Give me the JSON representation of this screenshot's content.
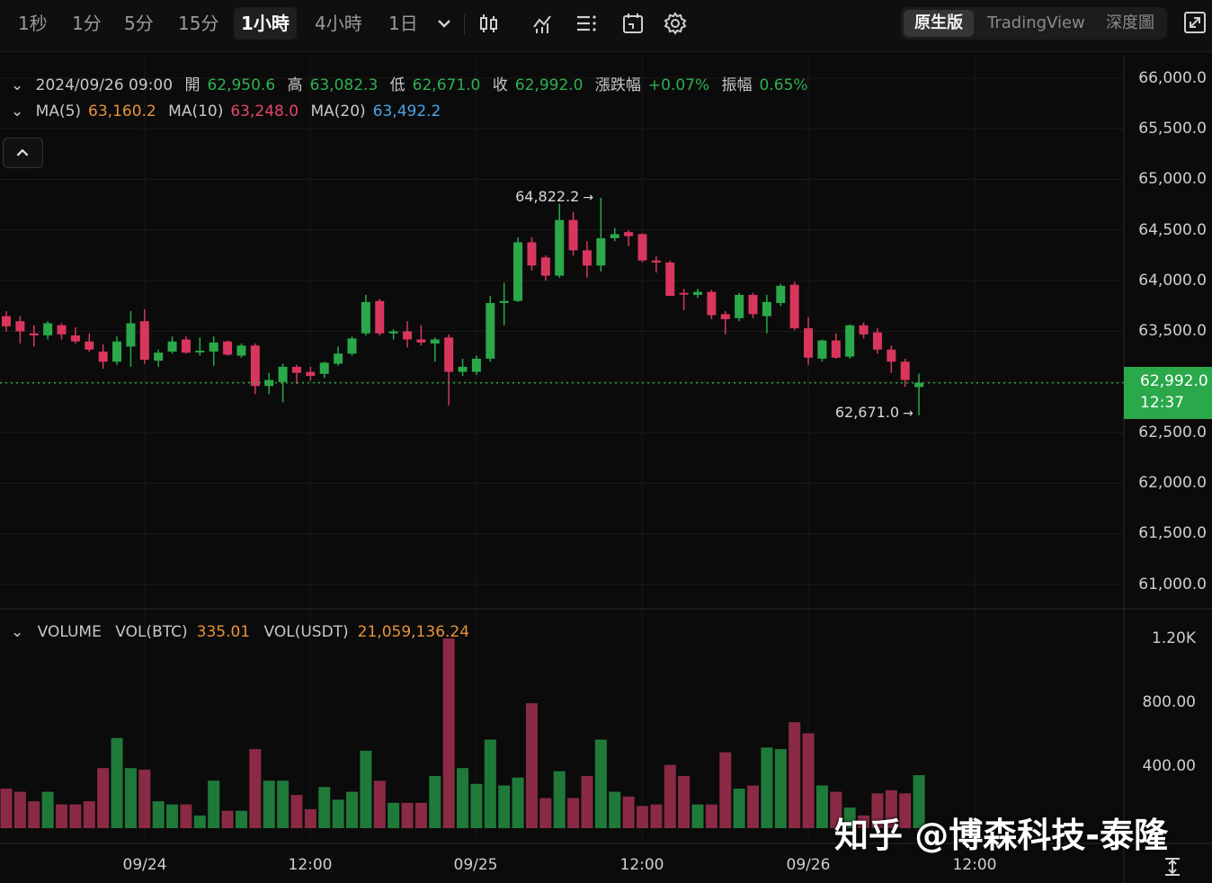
{
  "toolbar": {
    "timeframes": [
      "1秒",
      "1分",
      "5分",
      "15分",
      "1小時",
      "4小時",
      "1日"
    ],
    "active_timeframe": "1小時",
    "views": [
      "原生版",
      "TradingView",
      "深度圖"
    ],
    "active_view": "原生版"
  },
  "ohlc": {
    "datetime": "2024/09/26 09:00",
    "open_label": "開",
    "open": "62,950.6",
    "high_label": "高",
    "high": "63,082.3",
    "low_label": "低",
    "low": "62,671.0",
    "close_label": "收",
    "close": "62,992.0",
    "change_label": "漲跌幅",
    "change": "+0.07%",
    "amplitude_label": "振幅",
    "amplitude": "0.65%"
  },
  "ma": {
    "ma5_label": "MA(5)",
    "ma5": "63,160.2",
    "ma10_label": "MA(10)",
    "ma10": "63,248.0",
    "ma20_label": "MA(20)",
    "ma20": "63,492.2"
  },
  "price_axis": [
    "66,000.0",
    "65,500.0",
    "65,000.0",
    "64,500.0",
    "64,000.0",
    "63,500.0",
    "62,500.0",
    "62,000.0",
    "61,500.0",
    "61,000.0"
  ],
  "current_price": {
    "price": "62,992.0",
    "countdown": "12:37"
  },
  "high_marker": "64,822.2",
  "low_marker": "62,671.0",
  "volume": {
    "title": "VOLUME",
    "btc_label": "VOL(BTC)",
    "btc": "335.01",
    "usdt_label": "VOL(USDT)",
    "usdt": "21,059,136.24",
    "axis": [
      "1.20K",
      "800.00",
      "400.00"
    ]
  },
  "time_axis": [
    "09/24",
    "12:00",
    "09/25",
    "12:00",
    "09/26",
    "12:00"
  ],
  "watermark": "知乎 @博森科技-泰隆",
  "colors": {
    "up": "#2aa84a",
    "down": "#d9365e",
    "background": "#0b0b0b"
  },
  "chart_data": {
    "type": "candlestick",
    "y_range": [
      60800,
      66200
    ],
    "volume_range": [
      0,
      1200
    ],
    "candles": [
      {
        "o": 63650,
        "h": 63700,
        "l": 63500,
        "c": 63550,
        "v": 250
      },
      {
        "o": 63600,
        "h": 63650,
        "l": 63380,
        "c": 63500,
        "v": 230
      },
      {
        "o": 63480,
        "h": 63560,
        "l": 63350,
        "c": 63460,
        "v": 170
      },
      {
        "o": 63460,
        "h": 63600,
        "l": 63420,
        "c": 63580,
        "v": 230
      },
      {
        "o": 63560,
        "h": 63580,
        "l": 63420,
        "c": 63470,
        "v": 150
      },
      {
        "o": 63460,
        "h": 63540,
        "l": 63380,
        "c": 63400,
        "v": 150
      },
      {
        "o": 63400,
        "h": 63480,
        "l": 63300,
        "c": 63320,
        "v": 170
      },
      {
        "o": 63300,
        "h": 63370,
        "l": 63130,
        "c": 63200,
        "v": 380
      },
      {
        "o": 63200,
        "h": 63450,
        "l": 63170,
        "c": 63400,
        "v": 570
      },
      {
        "o": 63350,
        "h": 63700,
        "l": 63150,
        "c": 63580,
        "v": 380
      },
      {
        "o": 63600,
        "h": 63720,
        "l": 63180,
        "c": 63220,
        "v": 370
      },
      {
        "o": 63210,
        "h": 63320,
        "l": 63150,
        "c": 63290,
        "v": 170
      },
      {
        "o": 63300,
        "h": 63450,
        "l": 63280,
        "c": 63400,
        "v": 150
      },
      {
        "o": 63420,
        "h": 63450,
        "l": 63280,
        "c": 63290,
        "v": 150
      },
      {
        "o": 63300,
        "h": 63440,
        "l": 63260,
        "c": 63310,
        "v": 80
      },
      {
        "o": 63300,
        "h": 63450,
        "l": 63160,
        "c": 63390,
        "v": 300
      },
      {
        "o": 63400,
        "h": 63410,
        "l": 63260,
        "c": 63270,
        "v": 110
      },
      {
        "o": 63260,
        "h": 63380,
        "l": 63240,
        "c": 63360,
        "v": 110
      },
      {
        "o": 63360,
        "h": 63380,
        "l": 62880,
        "c": 62960,
        "v": 500
      },
      {
        "o": 62960,
        "h": 63090,
        "l": 62880,
        "c": 63020,
        "v": 300
      },
      {
        "o": 63000,
        "h": 63180,
        "l": 62800,
        "c": 63150,
        "v": 300
      },
      {
        "o": 63150,
        "h": 63170,
        "l": 62980,
        "c": 63090,
        "v": 210
      },
      {
        "o": 63100,
        "h": 63150,
        "l": 63010,
        "c": 63060,
        "v": 120
      },
      {
        "o": 63080,
        "h": 63200,
        "l": 63040,
        "c": 63190,
        "v": 260
      },
      {
        "o": 63180,
        "h": 63350,
        "l": 63160,
        "c": 63280,
        "v": 180
      },
      {
        "o": 63280,
        "h": 63450,
        "l": 63260,
        "c": 63430,
        "v": 230
      },
      {
        "o": 63480,
        "h": 63860,
        "l": 63460,
        "c": 63790,
        "v": 490
      },
      {
        "o": 63800,
        "h": 63820,
        "l": 63460,
        "c": 63480,
        "v": 300
      },
      {
        "o": 63480,
        "h": 63520,
        "l": 63420,
        "c": 63500,
        "v": 160
      },
      {
        "o": 63500,
        "h": 63600,
        "l": 63340,
        "c": 63420,
        "v": 160
      },
      {
        "o": 63420,
        "h": 63560,
        "l": 63360,
        "c": 63390,
        "v": 160
      },
      {
        "o": 63380,
        "h": 63440,
        "l": 63200,
        "c": 63420,
        "v": 330
      },
      {
        "o": 63440,
        "h": 63470,
        "l": 62770,
        "c": 63100,
        "v": 1200
      },
      {
        "o": 63100,
        "h": 63230,
        "l": 63060,
        "c": 63150,
        "v": 380
      },
      {
        "o": 63100,
        "h": 63260,
        "l": 63070,
        "c": 63230,
        "v": 280
      },
      {
        "o": 63230,
        "h": 63850,
        "l": 63200,
        "c": 63780,
        "v": 560
      },
      {
        "o": 63780,
        "h": 63980,
        "l": 63560,
        "c": 63800,
        "v": 270
      },
      {
        "o": 63800,
        "h": 64430,
        "l": 63790,
        "c": 64380,
        "v": 320
      },
      {
        "o": 64380,
        "h": 64430,
        "l": 64100,
        "c": 64150,
        "v": 790
      },
      {
        "o": 64230,
        "h": 64250,
        "l": 64000,
        "c": 64050,
        "v": 190
      },
      {
        "o": 64050,
        "h": 64760,
        "l": 64030,
        "c": 64600,
        "v": 360
      },
      {
        "o": 64600,
        "h": 64680,
        "l": 64250,
        "c": 64300,
        "v": 190
      },
      {
        "o": 64300,
        "h": 64390,
        "l": 64030,
        "c": 64150,
        "v": 330
      },
      {
        "o": 64150,
        "h": 64820,
        "l": 64090,
        "c": 64420,
        "v": 560
      },
      {
        "o": 64420,
        "h": 64520,
        "l": 64390,
        "c": 64460,
        "v": 230
      },
      {
        "o": 64480,
        "h": 64500,
        "l": 64340,
        "c": 64440,
        "v": 200
      },
      {
        "o": 64460,
        "h": 64470,
        "l": 64180,
        "c": 64200,
        "v": 140
      },
      {
        "o": 64200,
        "h": 64240,
        "l": 64080,
        "c": 64180,
        "v": 150
      },
      {
        "o": 64180,
        "h": 64200,
        "l": 63850,
        "c": 63850,
        "v": 400
      },
      {
        "o": 63880,
        "h": 63920,
        "l": 63710,
        "c": 63870,
        "v": 330
      },
      {
        "o": 63860,
        "h": 63920,
        "l": 63830,
        "c": 63890,
        "v": 150
      },
      {
        "o": 63890,
        "h": 63910,
        "l": 63620,
        "c": 63660,
        "v": 150
      },
      {
        "o": 63670,
        "h": 63700,
        "l": 63470,
        "c": 63620,
        "v": 480
      },
      {
        "o": 63630,
        "h": 63880,
        "l": 63600,
        "c": 63860,
        "v": 250
      },
      {
        "o": 63860,
        "h": 63880,
        "l": 63630,
        "c": 63670,
        "v": 270
      },
      {
        "o": 63650,
        "h": 63860,
        "l": 63480,
        "c": 63790,
        "v": 510
      },
      {
        "o": 63780,
        "h": 63970,
        "l": 63750,
        "c": 63950,
        "v": 500
      },
      {
        "o": 63960,
        "h": 63990,
        "l": 63510,
        "c": 63530,
        "v": 670
      },
      {
        "o": 63530,
        "h": 63640,
        "l": 63170,
        "c": 63240,
        "v": 600
      },
      {
        "o": 63230,
        "h": 63420,
        "l": 63200,
        "c": 63410,
        "v": 270
      },
      {
        "o": 63410,
        "h": 63480,
        "l": 63230,
        "c": 63240,
        "v": 230
      },
      {
        "o": 63250,
        "h": 63570,
        "l": 63230,
        "c": 63560,
        "v": 130
      },
      {
        "o": 63560,
        "h": 63590,
        "l": 63430,
        "c": 63470,
        "v": 80
      },
      {
        "o": 63490,
        "h": 63530,
        "l": 63280,
        "c": 63320,
        "v": 220
      },
      {
        "o": 63320,
        "h": 63360,
        "l": 63090,
        "c": 63200,
        "v": 240
      },
      {
        "o": 63200,
        "h": 63230,
        "l": 62950,
        "c": 63020,
        "v": 220
      },
      {
        "o": 62950,
        "h": 63082,
        "l": 62671,
        "c": 62992,
        "v": 335
      }
    ]
  }
}
